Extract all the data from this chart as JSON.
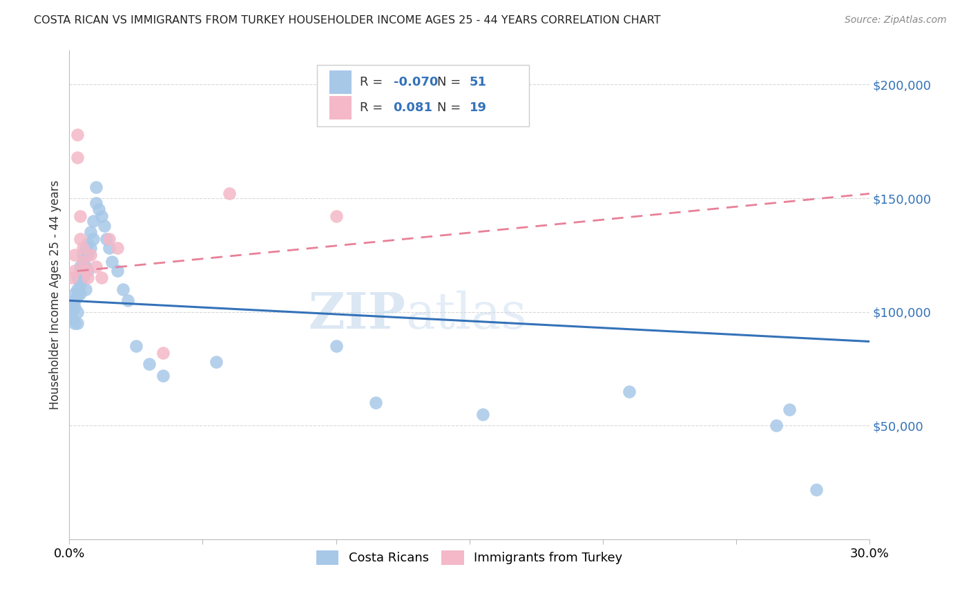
{
  "title": "COSTA RICAN VS IMMIGRANTS FROM TURKEY HOUSEHOLDER INCOME AGES 25 - 44 YEARS CORRELATION CHART",
  "source": "Source: ZipAtlas.com",
  "ylabel": "Householder Income Ages 25 - 44 years",
  "ytick_labels": [
    "$50,000",
    "$100,000",
    "$150,000",
    "$200,000"
  ],
  "ytick_values": [
    50000,
    100000,
    150000,
    200000
  ],
  "ymin": 0,
  "ymax": 215000,
  "xmin": 0.0,
  "xmax": 0.3,
  "watermark_zip": "ZIP",
  "watermark_atlas": "atlas",
  "blue_color": "#a8c8e8",
  "pink_color": "#f4b8c8",
  "blue_line_color": "#3472b8",
  "pink_line_color": "#e88098",
  "costa_rican_x": [
    0.001,
    0.001,
    0.001,
    0.002,
    0.002,
    0.002,
    0.002,
    0.003,
    0.003,
    0.003,
    0.003,
    0.003,
    0.004,
    0.004,
    0.004,
    0.004,
    0.005,
    0.005,
    0.005,
    0.006,
    0.006,
    0.006,
    0.007,
    0.007,
    0.007,
    0.008,
    0.008,
    0.009,
    0.009,
    0.01,
    0.01,
    0.011,
    0.012,
    0.013,
    0.014,
    0.015,
    0.016,
    0.018,
    0.02,
    0.022,
    0.025,
    0.03,
    0.035,
    0.055,
    0.1,
    0.115,
    0.155,
    0.21,
    0.265,
    0.27,
    0.28
  ],
  "costa_rican_y": [
    103000,
    100000,
    97000,
    108000,
    105000,
    102000,
    95000,
    115000,
    110000,
    107000,
    100000,
    95000,
    120000,
    118000,
    112000,
    108000,
    125000,
    122000,
    115000,
    128000,
    120000,
    110000,
    130000,
    125000,
    118000,
    135000,
    128000,
    140000,
    132000,
    155000,
    148000,
    145000,
    142000,
    138000,
    132000,
    128000,
    122000,
    118000,
    110000,
    105000,
    85000,
    77000,
    72000,
    78000,
    85000,
    60000,
    55000,
    65000,
    50000,
    57000,
    22000
  ],
  "turkey_x": [
    0.001,
    0.002,
    0.002,
    0.003,
    0.003,
    0.004,
    0.004,
    0.005,
    0.005,
    0.006,
    0.007,
    0.008,
    0.01,
    0.012,
    0.015,
    0.018,
    0.035,
    0.06,
    0.1
  ],
  "turkey_y": [
    115000,
    125000,
    118000,
    178000,
    168000,
    142000,
    132000,
    128000,
    122000,
    118000,
    115000,
    125000,
    120000,
    115000,
    132000,
    128000,
    82000,
    152000,
    142000
  ],
  "blue_trend_x": [
    0.0,
    0.3
  ],
  "blue_trend_y": [
    105000,
    87000
  ],
  "pink_trend_x": [
    0.003,
    0.3
  ],
  "pink_trend_y": [
    118000,
    152000
  ],
  "grid_color": "#d8d8d8",
  "bg_color": "#ffffff"
}
